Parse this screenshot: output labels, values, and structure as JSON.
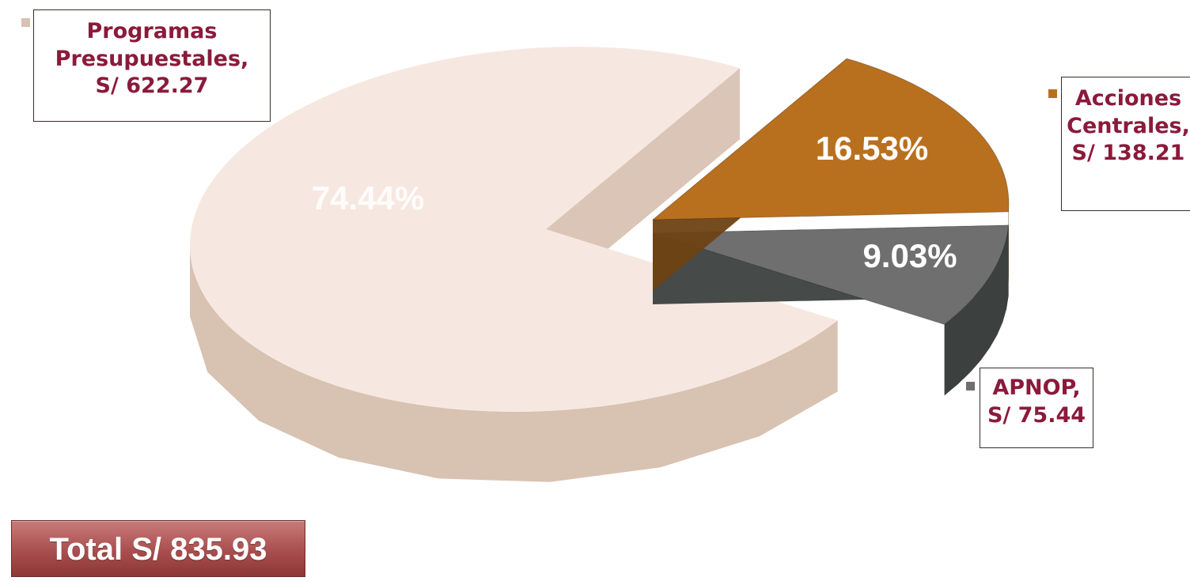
{
  "chart_data": {
    "type": "pie",
    "three_d": true,
    "categories": [
      "Programas Presupuestales",
      "Acciones Centrales",
      "APNOP"
    ],
    "values": [
      622.27,
      138.21,
      75.44
    ],
    "percent_labels": [
      "74.44%",
      "16.53%",
      "9.03%"
    ],
    "percents": [
      74.44,
      16.53,
      9.03
    ],
    "callouts": [
      [
        "Programas",
        "Presupuestales,",
        "S/ 622.27"
      ],
      [
        "Acciones",
        "Centrales,",
        "S/ 138.21"
      ],
      [
        "APNOP,",
        "S/ 75.44"
      ]
    ],
    "colors": {
      "programas_top": "#f6e8e0",
      "programas_side": "#d8c2b2",
      "acciones_top": "#b8701f",
      "acciones_side": "#6e4213",
      "apnop_top": "#6f6f6f",
      "apnop_side": "#3c413f",
      "label_text": "#8b1a3b",
      "callout_border": "#3a2a2a"
    },
    "exploded_slices": [
      "Acciones Centrales",
      "APNOP"
    ],
    "total_label": "Total S/ 835.93"
  }
}
